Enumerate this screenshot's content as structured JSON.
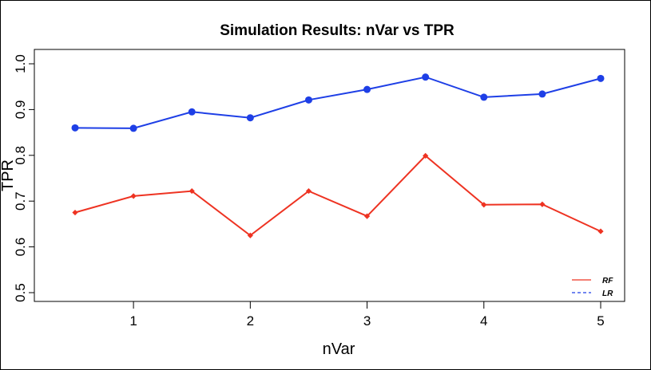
{
  "chart_data": {
    "type": "line",
    "title": "Simulation Results: nVar vs TPR",
    "xlabel": "nVar",
    "ylabel": "TPR",
    "xlim": [
      0.5,
      5
    ],
    "ylim": [
      0.5,
      1.0
    ],
    "x_ticks": [
      1,
      2,
      3,
      4,
      5
    ],
    "y_ticks": [
      0.5,
      0.6,
      0.7,
      0.8,
      0.9,
      1.0
    ],
    "x": [
      0.5,
      1,
      1.5,
      2,
      2.5,
      3,
      3.5,
      4,
      4.5,
      5
    ],
    "series": [
      {
        "name": "RF",
        "color": "#ee3322",
        "marker": "diamond",
        "line_style": "solid",
        "values": [
          0.675,
          0.711,
          0.722,
          0.625,
          0.722,
          0.667,
          0.799,
          0.692,
          0.693,
          0.634
        ]
      },
      {
        "name": "LR",
        "color": "#1e3fe6",
        "marker": "circle",
        "line_style": "solid",
        "legend_line_style": "dashed",
        "values": [
          0.86,
          0.859,
          0.895,
          0.882,
          0.921,
          0.944,
          0.971,
          0.927,
          0.934,
          0.968
        ]
      }
    ],
    "legend_position": "bottom-right",
    "grid": false
  }
}
